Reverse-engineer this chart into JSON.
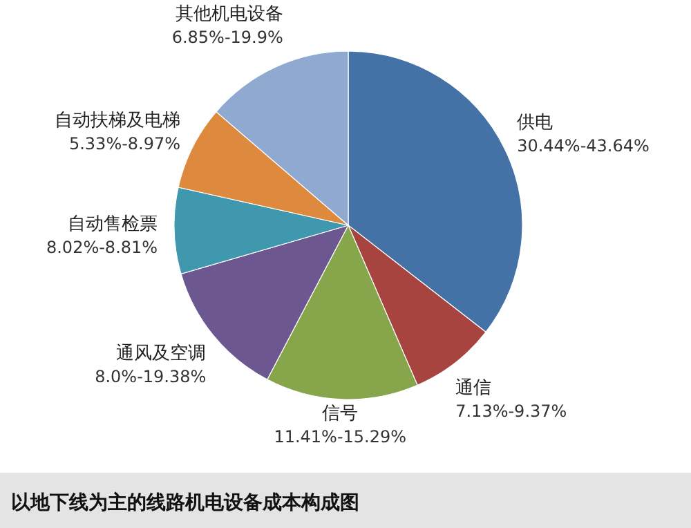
{
  "chart_data": {
    "type": "pie",
    "title": "以地下线为主的线路机电设备成本构成图",
    "categories": [
      "供电",
      "通信",
      "信号",
      "通风及空调",
      "自动售检票",
      "自动扶梯及电梯",
      "其他机电设备"
    ],
    "values": [
      35.5,
      8,
      14.2,
      12.8,
      8,
      7.8,
      13.7
    ],
    "annotations": [
      "30.44%-43.64%",
      "7.13%-9.37%",
      "11.41%-15.29%",
      "8.0%-19.38%",
      "8.02%-8.81%",
      "5.33%-8.97%",
      "6.85%-19.9%"
    ],
    "colors": [
      "#4472a6",
      "#a8443f",
      "#87a64c",
      "#6c5791",
      "#3f98ad",
      "#dd8a3e",
      "#8fa9d0"
    ],
    "legend": false
  }
}
